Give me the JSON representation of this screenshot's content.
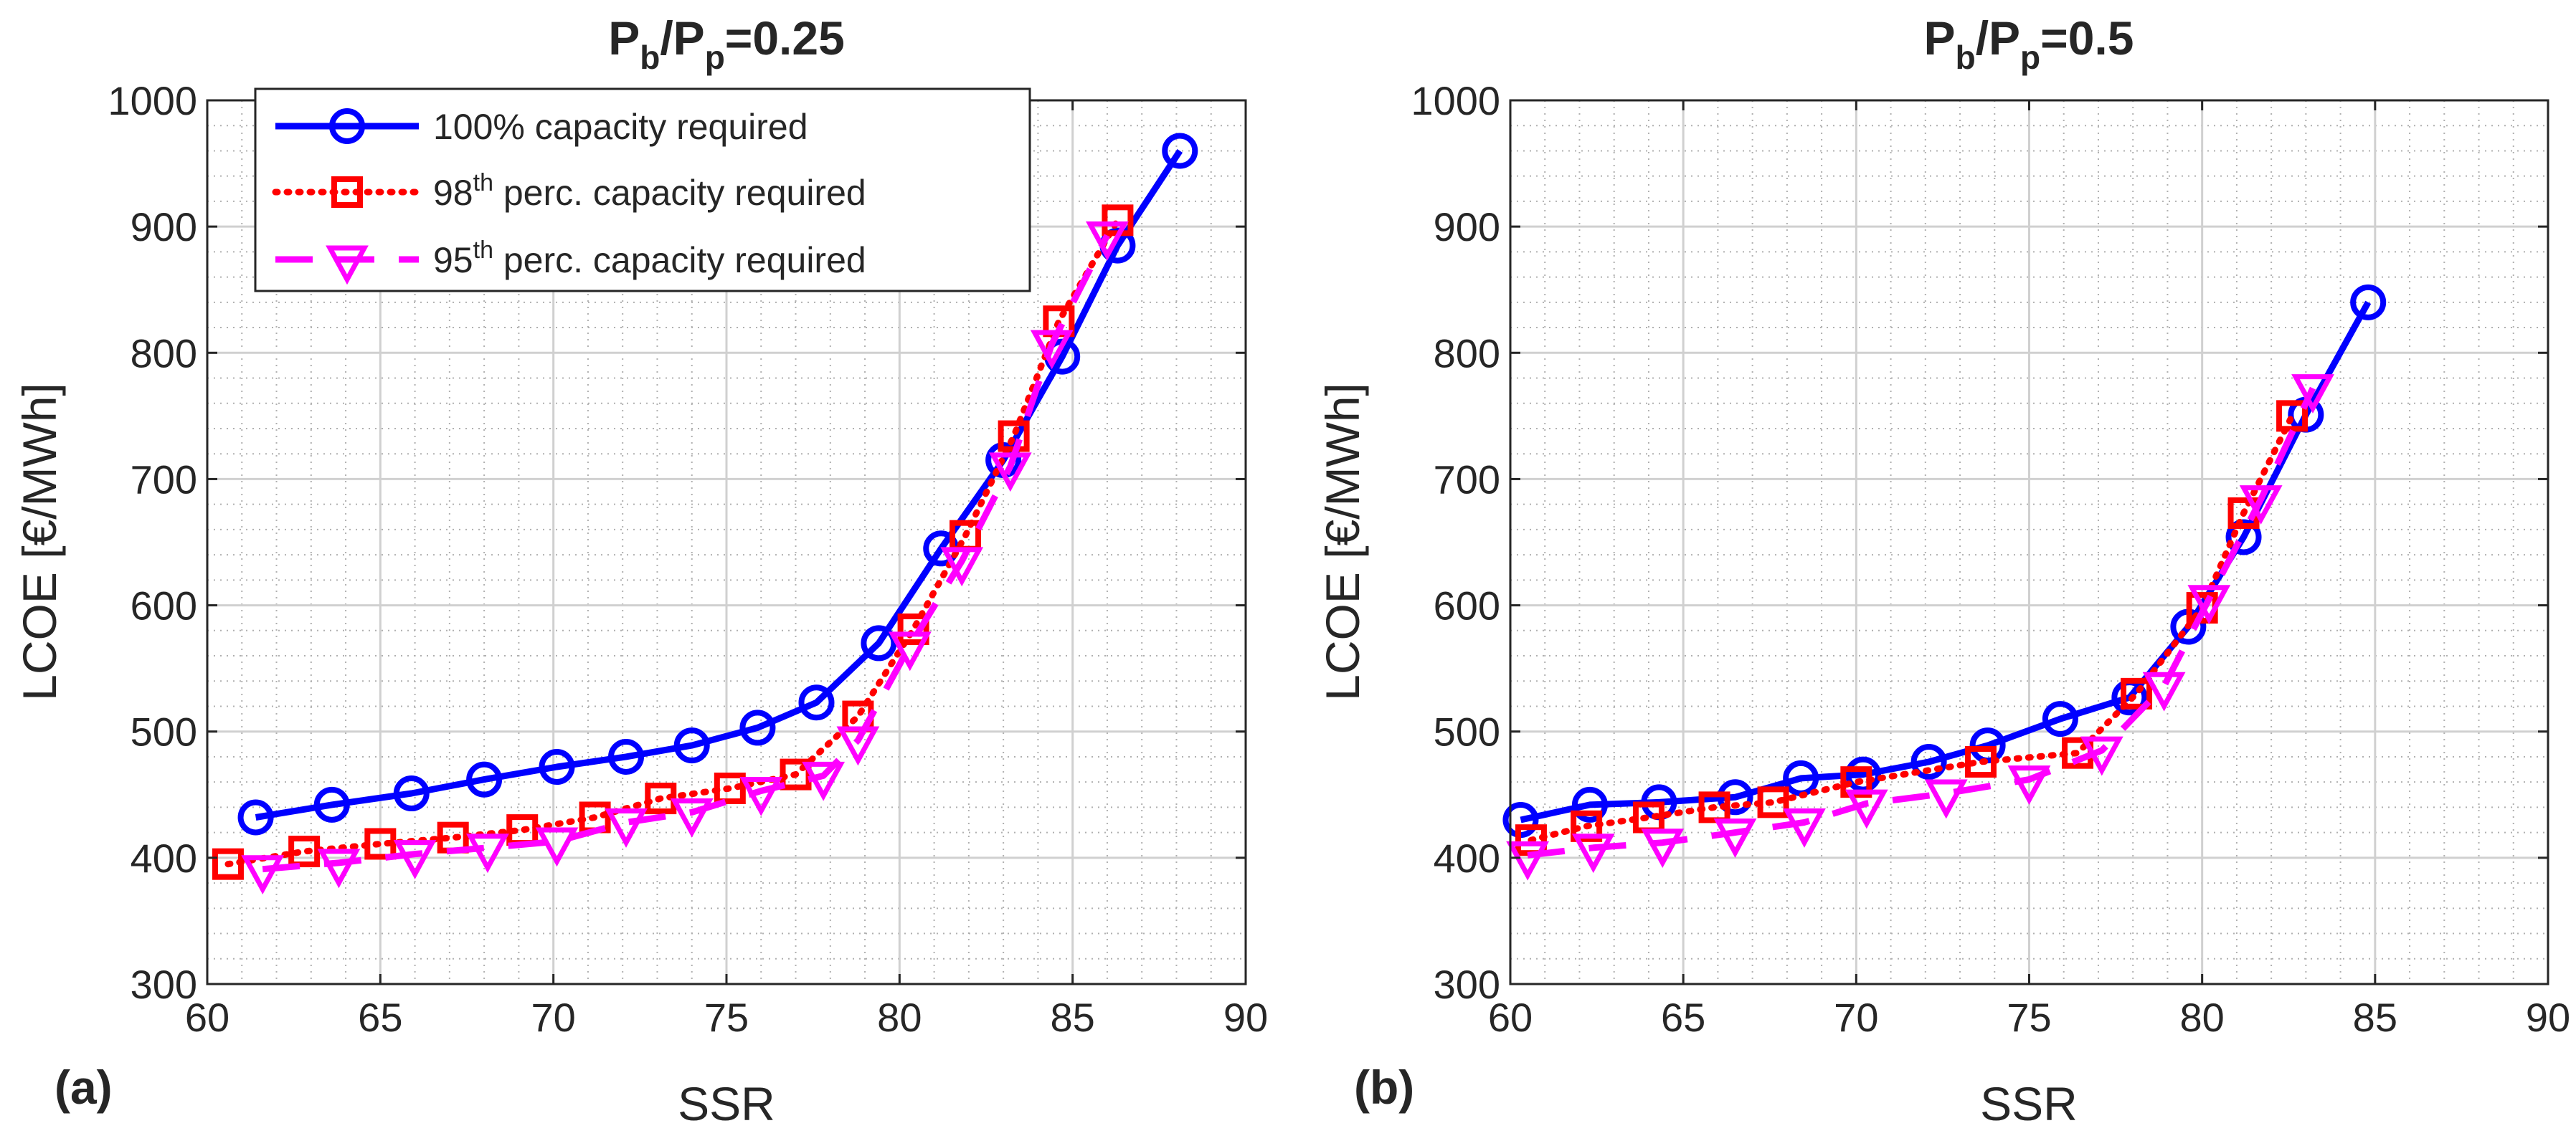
{
  "panel_labels": [
    "(a)",
    "(b)"
  ],
  "legend": {
    "entries": [
      {
        "main": "100% capacity required",
        "num": "",
        "sup": "",
        "rest": ""
      },
      {
        "main": "",
        "num": "98",
        "sup": "th",
        "rest": " perc. capacity required"
      },
      {
        "main": "",
        "num": "95",
        "sup": "th",
        "rest": " perc. capacity required"
      }
    ]
  },
  "titles": [
    {
      "p1": "P",
      "s1": "b",
      "p2": "/P",
      "s2": "p",
      "p3": "=0.25"
    },
    {
      "p1": "P",
      "s1": "b",
      "p2": "/P",
      "s2": "p",
      "p3": "=0.5"
    }
  ],
  "colors": {
    "series1": "#0000ff",
    "series2": "#ff0000",
    "series3": "#ff00ff"
  },
  "chart_data": [
    {
      "type": "line",
      "title": "Pb/Pp=0.25",
      "xlabel": "SSR",
      "ylabel": "LCOE [€/MWh]",
      "xlim": [
        60,
        90
      ],
      "ylim": [
        300,
        1000
      ],
      "xticks": [
        60,
        65,
        70,
        75,
        80,
        85,
        90
      ],
      "yticks": [
        300,
        400,
        500,
        600,
        700,
        800,
        900,
        1000
      ],
      "grid": true,
      "minor_grid": true,
      "legend_position": "top-left",
      "series": [
        {
          "name": "100% capacity required",
          "style": "solid",
          "marker": "circle",
          "x": [
            61.4,
            63.6,
            65.9,
            68.0,
            70.1,
            72.1,
            74.0,
            75.9,
            77.6,
            79.4,
            81.2,
            83.0,
            84.7,
            86.3,
            88.1
          ],
          "y": [
            432,
            442,
            451,
            462,
            472,
            480,
            489,
            503,
            523,
            570,
            645,
            715,
            797,
            885,
            960
          ]
        },
        {
          "name": "98th perc. capacity required",
          "style": "dotted",
          "marker": "square",
          "x": [
            60.6,
            62.8,
            65.0,
            67.1,
            69.1,
            71.2,
            73.1,
            75.1,
            77.0,
            78.8,
            80.4,
            81.9,
            83.3,
            84.6,
            86.3
          ],
          "y": [
            395,
            405,
            411,
            416,
            422,
            432,
            447,
            455,
            466,
            512,
            581,
            655,
            734,
            825,
            905
          ]
        },
        {
          "name": "95th perc. capacity required",
          "style": "dashed",
          "marker": "triangle-down",
          "x": [
            61.6,
            63.8,
            66.0,
            68.1,
            70.1,
            72.1,
            74.0,
            76.0,
            77.8,
            78.8,
            80.3,
            81.8,
            83.2,
            84.4,
            86.0
          ],
          "y": [
            391,
            396,
            403,
            408,
            413,
            428,
            436,
            453,
            465,
            493,
            568,
            635,
            710,
            807,
            893
          ]
        }
      ]
    },
    {
      "type": "line",
      "title": "Pb/Pp=0.5",
      "xlabel": "SSR",
      "ylabel": "LCOE [€/MWh]",
      "xlim": [
        60,
        90
      ],
      "ylim": [
        300,
        1000
      ],
      "xticks": [
        60,
        65,
        70,
        75,
        80,
        85,
        90
      ],
      "yticks": [
        300,
        400,
        500,
        600,
        700,
        800,
        900,
        1000
      ],
      "grid": true,
      "minor_grid": true,
      "series": [
        {
          "name": "100% capacity required",
          "style": "solid",
          "marker": "circle",
          "x": [
            60.3,
            62.3,
            64.3,
            66.5,
            68.4,
            70.2,
            72.1,
            73.8,
            75.9,
            77.9,
            79.6,
            81.2,
            83.0,
            84.8
          ],
          "y": [
            430,
            442,
            444,
            448,
            463,
            466,
            476,
            489,
            510,
            527,
            583,
            654,
            751,
            840
          ]
        },
        {
          "name": "98th perc. capacity required",
          "style": "dotted",
          "marker": "square",
          "x": [
            60.6,
            62.2,
            64.0,
            65.9,
            67.6,
            70.0,
            73.6,
            76.4,
            78.1,
            80.0,
            81.2,
            82.6
          ],
          "y": [
            414,
            425,
            432,
            440,
            444,
            460,
            476,
            483,
            530,
            598,
            673,
            750
          ]
        },
        {
          "name": "95th perc. capacity required",
          "style": "dashed",
          "marker": "triangle-down",
          "x": [
            60.5,
            62.4,
            64.4,
            66.5,
            68.5,
            70.3,
            72.6,
            75.0,
            77.1,
            78.9,
            80.2,
            81.7,
            83.2
          ],
          "y": [
            402,
            408,
            412,
            420,
            428,
            443,
            451,
            462,
            485,
            536,
            605,
            684,
            772
          ]
        }
      ]
    }
  ]
}
